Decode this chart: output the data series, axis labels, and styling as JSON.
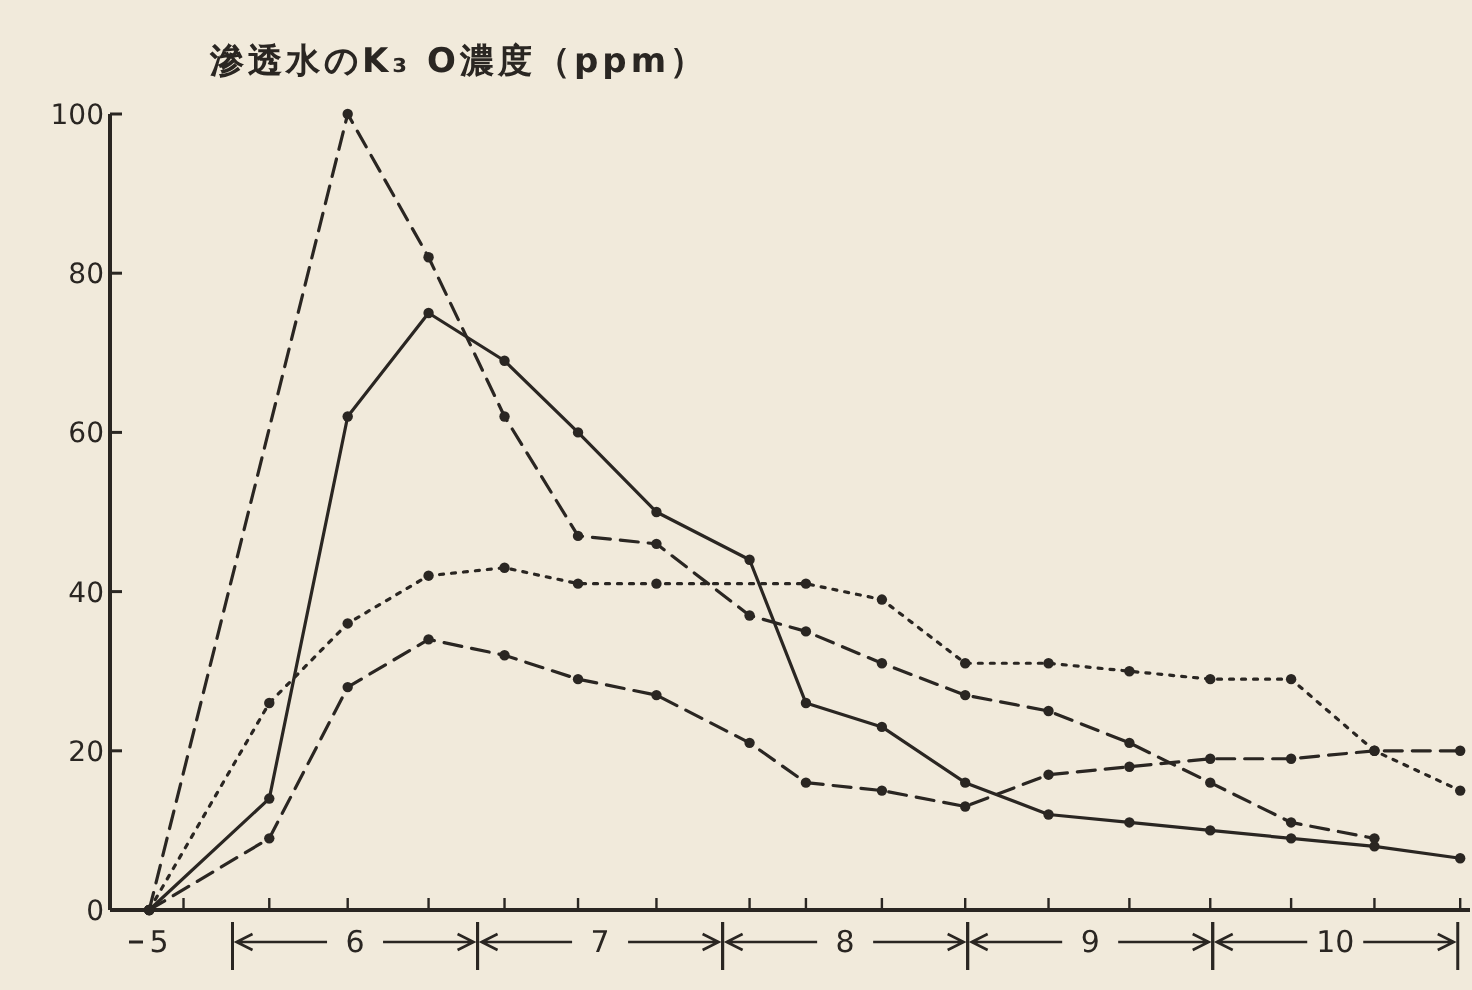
{
  "chart_data": {
    "type": "line",
    "title": "滲透水のK₃ O濃度（ppm）",
    "xlim": [
      5.0,
      10.55
    ],
    "ylim": [
      0,
      100
    ],
    "yticks": [
      0,
      20,
      40,
      60,
      80,
      100
    ],
    "xticks": [
      {
        "value": 5.2,
        "label": "5"
      },
      {
        "value": 6,
        "label": "6"
      },
      {
        "value": 7,
        "label": "7"
      },
      {
        "value": 8,
        "label": "8"
      },
      {
        "value": 9,
        "label": "9"
      },
      {
        "value": 10,
        "label": "10"
      },
      {
        "value": 5.3,
        "label": null
      },
      {
        "value": 5.65,
        "label": null
      },
      {
        "value": 5.97,
        "label": null
      },
      {
        "value": 6.3,
        "label": null
      },
      {
        "value": 6.61,
        "label": null
      },
      {
        "value": 6.91,
        "label": null
      },
      {
        "value": 7.23,
        "label": null
      },
      {
        "value": 7.61,
        "label": null
      },
      {
        "value": 7.84,
        "label": null
      },
      {
        "value": 8.15,
        "label": null
      },
      {
        "value": 8.49,
        "label": null
      },
      {
        "value": 8.83,
        "label": null
      },
      {
        "value": 9.16,
        "label": null
      },
      {
        "value": 9.49,
        "label": null
      },
      {
        "value": 9.82,
        "label": null
      },
      {
        "value": 10.16,
        "label": null
      },
      {
        "value": 10.51,
        "label": null
      }
    ],
    "marker": "circle",
    "series": [
      {
        "color": "#2a2622",
        "line_style": "solid",
        "x": [
          5.16,
          5.65,
          5.97,
          6.3,
          6.61,
          6.91,
          7.23,
          7.61,
          7.84,
          8.15,
          8.49,
          8.83,
          9.16,
          9.49,
          9.82,
          10.16,
          10.51
        ],
        "values": [
          0,
          14,
          62,
          75,
          69,
          60,
          50,
          44,
          26,
          23,
          16,
          12,
          11,
          10,
          9,
          8,
          6.5
        ]
      },
      {
        "color": "#2a2622",
        "line_style": "dashed",
        "x": [
          5.16,
          5.97,
          6.3,
          6.61,
          6.91,
          7.23,
          7.61,
          7.84,
          8.15,
          8.49,
          8.83,
          9.16,
          9.49,
          9.82,
          10.16
        ],
        "values": [
          0,
          100,
          82,
          62,
          47,
          46,
          37,
          35,
          31,
          27,
          25,
          21,
          16,
          11,
          9
        ]
      },
      {
        "color": "#2a2622",
        "line_style": "dotted",
        "x": [
          5.16,
          5.65,
          5.97,
          6.3,
          6.61,
          6.91,
          7.23,
          7.84,
          8.15,
          8.49,
          8.83,
          9.16,
          9.49,
          9.82,
          10.16,
          10.51
        ],
        "values": [
          0,
          26,
          36,
          42,
          43,
          41,
          41,
          41,
          39,
          31,
          31,
          30,
          29,
          29,
          20,
          15
        ]
      },
      {
        "color": "#2a2622",
        "line_style": "dashed",
        "x": [
          5.16,
          5.65,
          5.97,
          6.3,
          6.61,
          6.91,
          7.23,
          7.61,
          7.84,
          8.15,
          8.49,
          8.83,
          9.16,
          9.49,
          9.82,
          10.16,
          10.51
        ],
        "values": [
          0,
          9,
          28,
          34,
          32,
          29,
          27,
          21,
          16,
          15,
          13,
          17,
          18,
          19,
          19,
          20,
          20
        ]
      }
    ]
  }
}
